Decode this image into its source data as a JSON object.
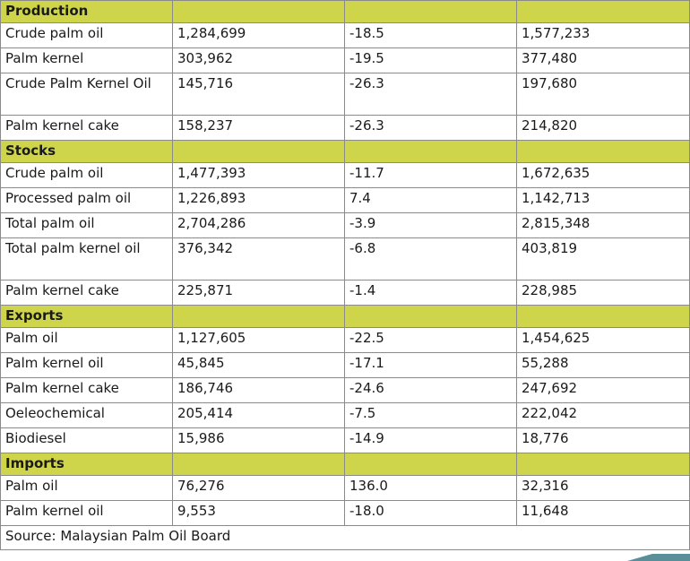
{
  "sections": [
    {
      "title": "Production",
      "rows": [
        [
          "Crude palm oil",
          "1,284,699",
          "-18.5",
          "1,577,233"
        ],
        [
          "Palm kernel",
          "303,962",
          "-19.5",
          "377,480"
        ],
        [
          "Crude Palm Kernel Oil",
          "145,716",
          "-26.3",
          "197,680"
        ],
        [
          "Palm kernel cake",
          "158,237",
          "-26.3",
          "214,820"
        ]
      ]
    },
    {
      "title": "Stocks",
      "rows": [
        [
          "Crude palm oil",
          "1,477,393",
          "-11.7",
          "1,672,635"
        ],
        [
          "Processed palm oil",
          "1,226,893",
          "7.4",
          "1,142,713"
        ],
        [
          "Total palm oil",
          "2,704,286",
          "-3.9",
          "2,815,348"
        ],
        [
          "Total palm kernel oil",
          "376,342",
          "-6.8",
          "403,819"
        ],
        [
          "Palm kernel cake",
          "225,871",
          "-1.4",
          "228,985"
        ]
      ]
    },
    {
      "title": "Exports",
      "rows": [
        [
          "Palm oil",
          "1,127,605",
          "-22.5",
          "1,454,625"
        ],
        [
          "Palm kernel oil",
          "45,845",
          "-17.1",
          "55,288"
        ],
        [
          "Palm kernel cake",
          "186,746",
          "-24.6",
          "247,692"
        ],
        [
          "Oeleochemical",
          "205,414",
          "-7.5",
          "222,042"
        ],
        [
          "Biodiesel",
          "15,986",
          "-14.9",
          "18,776"
        ]
      ]
    },
    {
      "title": "Imports",
      "rows": [
        [
          "Palm oil",
          "76,276",
          "136.0",
          "32,316"
        ],
        [
          "Palm kernel oil",
          "9,553",
          "-18.0",
          "11,648"
        ]
      ]
    }
  ],
  "source": "Source: Malaysian Palm Oil Board",
  "colors": {
    "section_bg": "#cfd54a",
    "border": "#8a8a8a",
    "accent": "#5a8f99"
  }
}
